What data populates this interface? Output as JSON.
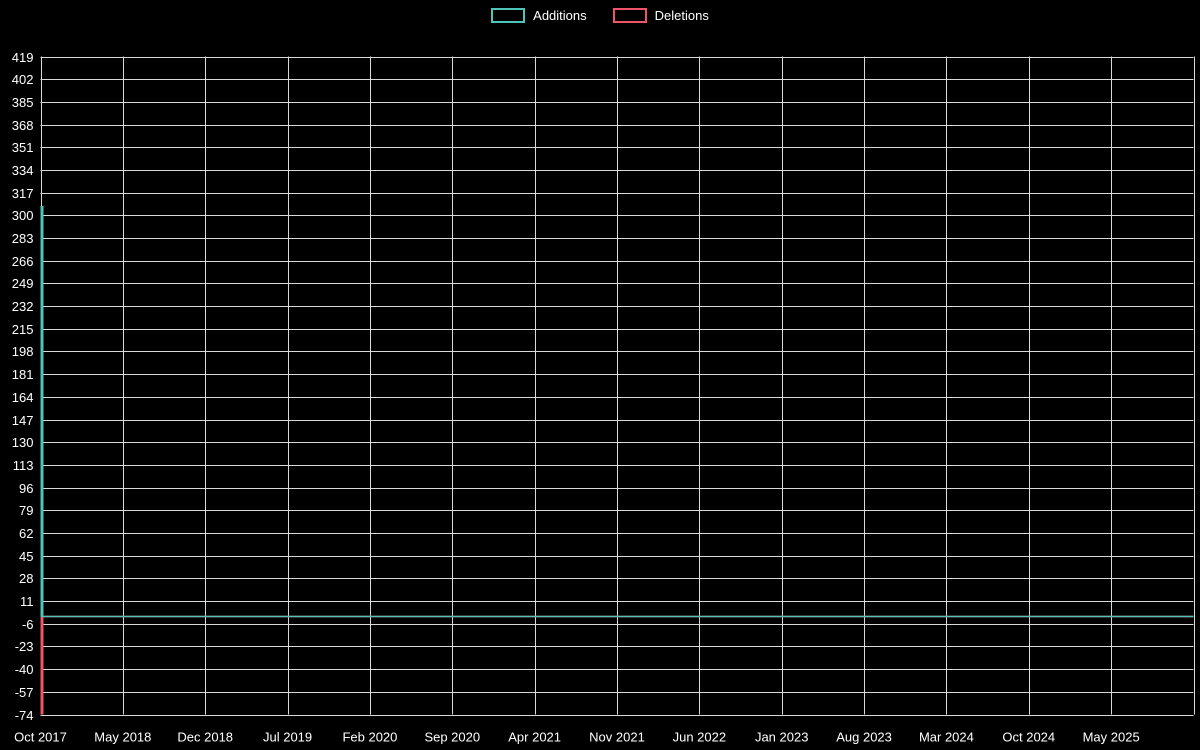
{
  "legend": {
    "items": [
      {
        "label": "Additions",
        "color": "#4fc3b8"
      },
      {
        "label": "Deletions",
        "color": "#ee5566"
      }
    ]
  },
  "chart_data": {
    "type": "bar",
    "title": "",
    "xlabel": "",
    "ylabel": "",
    "background_color": "#000000",
    "grid_color": "#d9d9d9",
    "text_color": "#ffffff",
    "grid": true,
    "legend_position": "top-center",
    "ylim": [
      -74,
      419
    ],
    "y_tick_step": 17,
    "y_ticks": [
      419,
      402,
      385,
      368,
      351,
      334,
      317,
      300,
      283,
      266,
      249,
      232,
      215,
      198,
      181,
      164,
      147,
      130,
      113,
      96,
      79,
      62,
      45,
      28,
      11,
      -6,
      -23,
      -40,
      -57,
      -74
    ],
    "x_labels": [
      "Oct 2017",
      "May 2018",
      "Dec 2018",
      "Jul 2019",
      "Feb 2020",
      "Sep 2020",
      "Apr 2021",
      "Nov 2021",
      "Jun 2022",
      "Jan 2023",
      "Aug 2023",
      "Mar 2024",
      "Oct 2024",
      "May 2025"
    ],
    "series": [
      {
        "name": "Additions",
        "color": "#4fc3b8",
        "values": [
          307,
          0,
          0,
          0,
          0,
          0,
          0,
          0,
          0,
          0,
          0,
          0,
          0,
          0
        ]
      },
      {
        "name": "Deletions",
        "color": "#ee5566",
        "values": [
          -74,
          0,
          0,
          0,
          0,
          0,
          0,
          0,
          0,
          0,
          0,
          0,
          0,
          0
        ]
      }
    ],
    "notes": "Single spike of additions (~307) and deletions (-74) at the first date (Oct 2017); all later values are zero, drawn as overlapping baselines at y=0 across the full plot width."
  }
}
